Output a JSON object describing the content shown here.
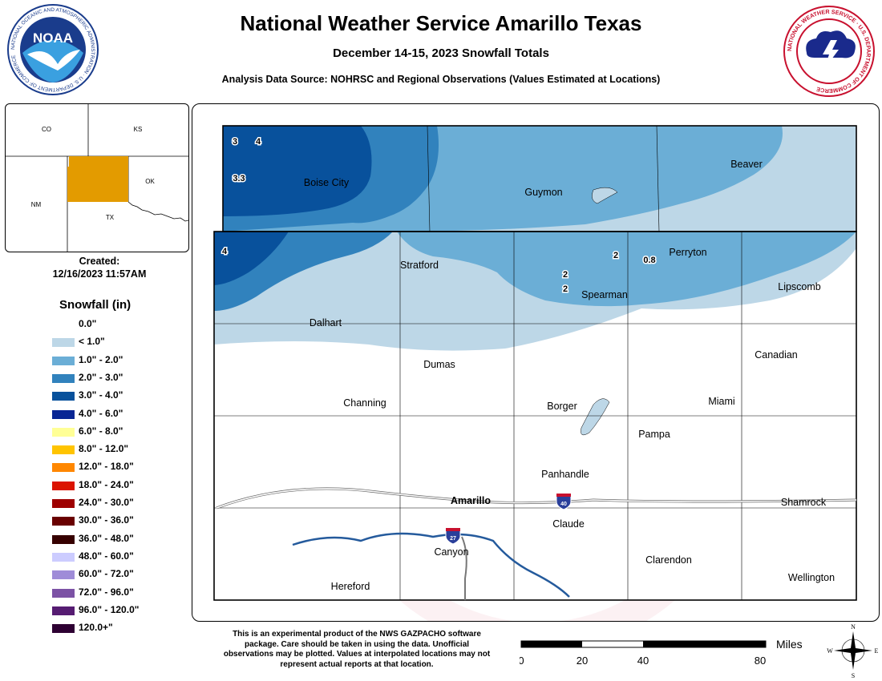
{
  "header": {
    "title": "National Weather Service Amarillo Texas",
    "subtitle": "December 14-15, 2023 Snowfall Totals",
    "source": "Analysis Data Source: NOHRSC and Regional Observations (Values Estimated at Locations)"
  },
  "logos": {
    "noaa_ring_text": "NATIONAL OCEANIC AND ATMOSPHERIC ADMINISTRATION · U.S. DEPARTMENT OF COMMERCE",
    "noaa_center": "NOAA",
    "nws_ring_text": "NATIONAL WEATHER SERVICE · U.S. DEPARTMENT OF COMMERCE"
  },
  "inset": {
    "states": [
      "CO",
      "KS",
      "NM",
      "OK",
      "TX"
    ],
    "highlight_color": "#E39B00"
  },
  "created": {
    "label": "Created:",
    "datetime": "12/16/2023 11:57AM"
  },
  "legend": {
    "title": "Snowfall (in)",
    "items": [
      {
        "label": "0.0\"",
        "color": "#FFFFFF"
      },
      {
        "label": "< 1.0\"",
        "color": "#BDD7E7"
      },
      {
        "label": "1.0\" - 2.0\"",
        "color": "#6BAED6"
      },
      {
        "label": "2.0\" - 3.0\"",
        "color": "#3182BD"
      },
      {
        "label": "3.0\" - 4.0\"",
        "color": "#08519C"
      },
      {
        "label": "4.0\" - 6.0\"",
        "color": "#082694"
      },
      {
        "label": "6.0\" - 8.0\"",
        "color": "#FFFF96"
      },
      {
        "label": "8.0\" - 12.0\"",
        "color": "#FFC400"
      },
      {
        "label": "12.0\" - 18.0\"",
        "color": "#FF8700"
      },
      {
        "label": "18.0\" - 24.0\"",
        "color": "#DB1400"
      },
      {
        "label": "24.0\" - 30.0\"",
        "color": "#9E0000"
      },
      {
        "label": "30.0\" - 36.0\"",
        "color": "#690000"
      },
      {
        "label": "36.0\" - 48.0\"",
        "color": "#360000"
      },
      {
        "label": "48.0\" - 60.0\"",
        "color": "#CCCCFF"
      },
      {
        "label": "60.0\" - 72.0\"",
        "color": "#9F8CD8"
      },
      {
        "label": "72.0\" - 96.0\"",
        "color": "#7C52A5"
      },
      {
        "label": "96.0\" - 120.0\"",
        "color": "#561C72"
      },
      {
        "label": "120.0+\"",
        "color": "#2E0033"
      }
    ]
  },
  "map": {
    "cities": [
      "Boise City",
      "Guymon",
      "Beaver",
      "Stratford",
      "Perryton",
      "Spearman",
      "Lipscomb",
      "Dalhart",
      "Dumas",
      "Canadian",
      "Channing",
      "Borger",
      "Miami",
      "Pampa",
      "Panhandle",
      "Amarillo",
      "Shamrock",
      "Claude",
      "Canyon",
      "Clarendon",
      "Hereford",
      "Wellington"
    ],
    "observations": [
      "3",
      "4",
      "3.3",
      "4",
      "2",
      "0.8",
      "2",
      "2"
    ],
    "interstates": [
      "40",
      "27"
    ]
  },
  "disclaimer": "This is an experimental product of the NWS GAZPACHO software package. Care should be taken in using the data. Unofficial observations may be plotted. Values at interpolated locations may not represent actual reports at that location.",
  "scale": {
    "unit": "Miles",
    "ticks": [
      "0",
      "20",
      "40",
      "80"
    ]
  },
  "compass": {
    "n": "N",
    "s": "S",
    "e": "E",
    "w": "W"
  }
}
